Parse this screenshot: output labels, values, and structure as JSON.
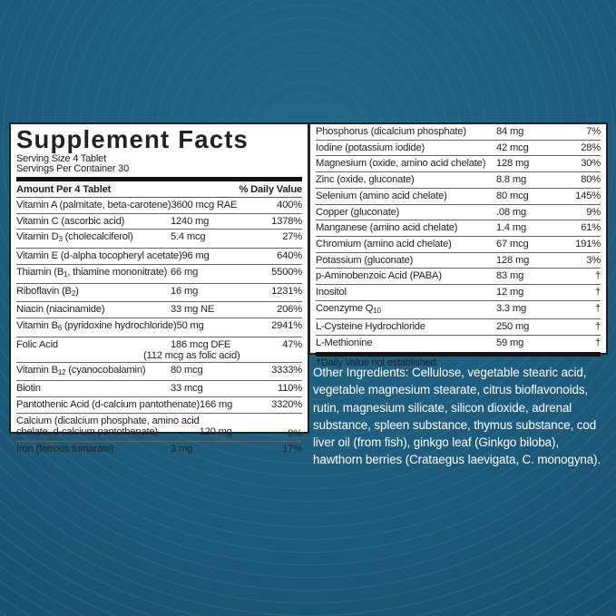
{
  "label": {
    "title": "Supplement Facts",
    "serving_size": "Serving Size 4 Tablet",
    "servings_per_container": "Servings Per Container 30",
    "amount_header": "Amount Per 4 Tablet",
    "dv_header": "% Daily Value",
    "left_rows": [
      {
        "pre": "Vitamin A (palmitate, beta-carotene)",
        "sub": "",
        "post": "",
        "amount": "3600 mcg RAE",
        "dv": "400%"
      },
      {
        "pre": "Vitamin C (ascorbic acid)",
        "sub": "",
        "post": "",
        "amount": "1240 mg",
        "dv": "1378%"
      },
      {
        "pre": "Vitamin D",
        "sub": "3",
        "post": " (cholecalciferol)",
        "amount": "5.4 mcg",
        "dv": "27%"
      },
      {
        "pre": "Vitamin E (d-alpha tocopheryl acetate)",
        "sub": "",
        "post": "",
        "amount": "96 mg",
        "dv": "640%"
      },
      {
        "pre": "Thiamin (B",
        "sub": "1",
        "post": ", thiamine mononitrate)",
        "amount": "66 mg",
        "dv": "5500%"
      },
      {
        "pre": "Riboflavin (B",
        "sub": "2",
        "post": ")",
        "amount": "16 mg",
        "dv": "1231%"
      },
      {
        "pre": "Niacin (niacinamide)",
        "sub": "",
        "post": "",
        "amount": "33 mg NE",
        "dv": "206%"
      },
      {
        "pre": "Vitamin B",
        "sub": "6",
        "post": " (pyridoxine hydrochloride)",
        "amount": "50 mg",
        "dv": "2941%"
      },
      {
        "pre": "Folic Acid",
        "sub": "",
        "post": "",
        "amount": "186 mcg DFE",
        "amount2": "(112 mcg as folic acid)",
        "dv": "47%"
      },
      {
        "pre": "Vitamin B",
        "sub": "12",
        "post": " (cyanocobalamin)",
        "amount": "80 mcg",
        "dv": "3333%"
      },
      {
        "pre": "Biotin",
        "sub": "",
        "post": "",
        "amount": "33 mcg",
        "dv": "110%"
      },
      {
        "pre": "Pantothenic Acid (d-calcium pantothenate)",
        "sub": "",
        "post": "",
        "amount": "166 mg",
        "dv": "3320%"
      },
      {
        "pre": "Calcium (dicalcium phosphate, amino acid",
        "pre2": " chelate, d-calcium pantothenate)",
        "sub": "",
        "post": "",
        "amount": "120 mg",
        "dv": "9%"
      },
      {
        "pre": "Iron (ferrous fumarate)",
        "sub": "",
        "post": "",
        "amount": "3 mg",
        "dv": "17%"
      }
    ],
    "right_rows": [
      {
        "pre": "Phosphorus (dicalcium phosphate)",
        "sub": "",
        "post": "",
        "amount": "84 mg",
        "dv": "7%"
      },
      {
        "pre": "Iodine (potassium iodide)",
        "sub": "",
        "post": "",
        "amount": "42 mcg",
        "dv": "28%"
      },
      {
        "pre": "Magnesium (oxide, amino acid chelate)",
        "sub": "",
        "post": "",
        "amount": "128 mg",
        "dv": "30%"
      },
      {
        "pre": "Zinc (oxide, gluconate)",
        "sub": "",
        "post": "",
        "amount": "8.8 mg",
        "dv": "80%"
      },
      {
        "pre": "Selenium (amino acid chelate)",
        "sub": "",
        "post": "",
        "amount": "80 mcg",
        "dv": "145%"
      },
      {
        "pre": "Copper (gluconate)",
        "sub": "",
        "post": "",
        "amount": ".08 mg",
        "dv": "9%"
      },
      {
        "pre": "Manganese (amino acid chelate)",
        "sub": "",
        "post": "",
        "amount": "1.4 mg",
        "dv": "61%"
      },
      {
        "pre": "Chromium (amino acid chelate)",
        "sub": "",
        "post": "",
        "amount": "67 mcg",
        "dv": "191%"
      },
      {
        "pre": "Potassium (gluconate)",
        "sub": "",
        "post": "",
        "amount": "128 mg",
        "dv": "3%"
      },
      {
        "pre": "p-Aminobenzoic Acid (PABA)",
        "sub": "",
        "post": "",
        "amount": "83 mg",
        "dv": "†"
      },
      {
        "pre": "Inositol",
        "sub": "",
        "post": "",
        "amount": "12 mg",
        "dv": "†"
      },
      {
        "pre": "Coenzyme Q",
        "sub": "10",
        "post": "",
        "amount": "3.3 mg",
        "dv": "†"
      },
      {
        "pre": "L-Cysteine Hydrochloride",
        "sub": "",
        "post": "",
        "amount": "250 mg",
        "dv": "†"
      },
      {
        "pre": "L-Methionine",
        "sub": "",
        "post": "",
        "amount": "59 mg",
        "dv": "†"
      }
    ],
    "footnote": "†Daily Value not established."
  },
  "other_ingredients": "Other Ingredients: Cellulose, vegetable stearic acid, vegetable magnesium stearate, citrus bioflavonoids, rutin, magnesium silicate, silicon dioxide, adrenal substance, spleen substance, thymus substance, cod liver oil (from fish), ginkgo leaf (Ginkgo biloba), hawthorn berries (Crataegus laevigata, C. monogyna).",
  "colors": {
    "background": "#1d5b7c",
    "panel": "#ffffff",
    "text": "#222222"
  }
}
